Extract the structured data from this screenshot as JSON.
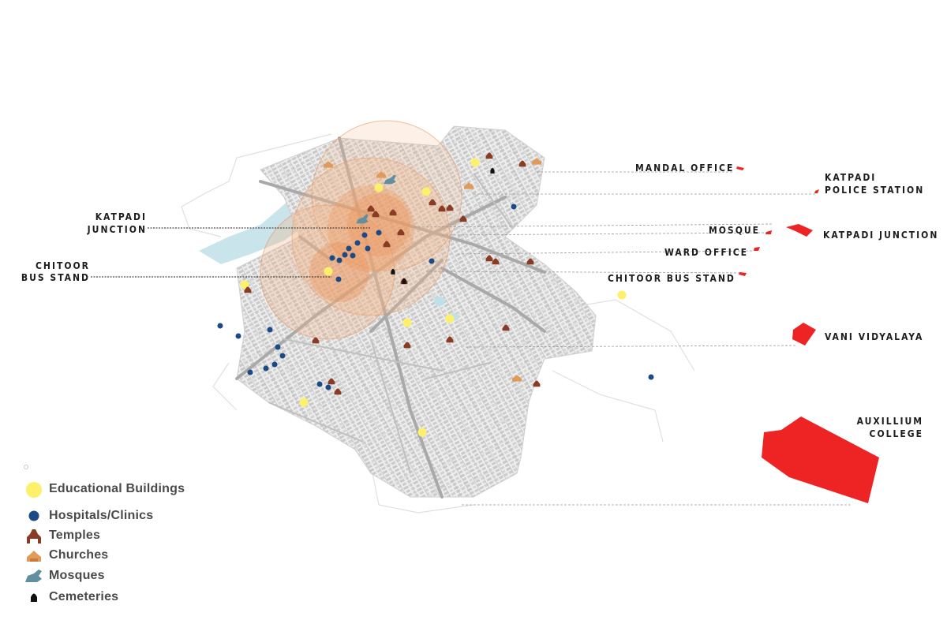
{
  "map": {
    "labels": {
      "mandal_office": "MANDAL OFFICE",
      "police_line1": "KATPADI",
      "police_line2": "POLICE STATION",
      "mosque": "MOSQUE",
      "katpadi_junction_right": "KATPADI JUNCTION",
      "ward_office": "WARD OFFICE",
      "chitoor_bus_stand_right": "CHITOOR BUS STAND",
      "vani_vidyalaya": "VANI VIDYALAYA",
      "auxillium_line1": "AUXILLIUM",
      "auxillium_line2": "COLLEGE",
      "katpadi_junction_left_line1": "KATPADI",
      "katpadi_junction_left_line2": "JUNCTION",
      "chitoor_left_line1": "CHITOOR",
      "chitoor_left_line2": "BUS STAND"
    },
    "colors": {
      "landmark_red": "#ee2424",
      "educational": "#fdf06a",
      "hospital": "#1c4a86",
      "temple": "#8a3b24",
      "church": "#e09a5a",
      "mosque": "#5f8fa0",
      "cemetery": "#111111",
      "buffer": "#f0a070",
      "water": "#c7e3ea",
      "roads": "#b9b9b9"
    }
  },
  "legend": {
    "items": [
      {
        "label": "Educational Buildings",
        "icon": "educational-circle-icon"
      },
      {
        "label": "Hospitals/Clinics",
        "icon": "hospital-dot-icon"
      },
      {
        "label": "Temples",
        "icon": "temple-icon"
      },
      {
        "label": "Churches",
        "icon": "church-icon"
      },
      {
        "label": "Mosques",
        "icon": "mosque-icon"
      },
      {
        "label": "Cemeteries",
        "icon": "cemetery-icon"
      }
    ]
  }
}
